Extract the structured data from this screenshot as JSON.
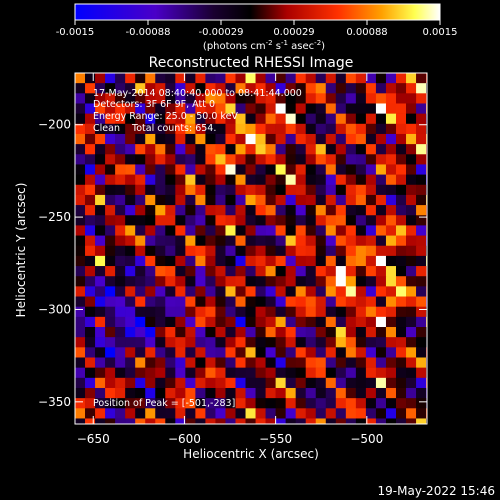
{
  "chart_data": {
    "type": "heatmap",
    "title": "Reconstructed RHESSI Image",
    "xlabel": "Heliocentric X (arcsec)",
    "ylabel": "Heliocentric Y (arcsec)",
    "xlim": [
      -660,
      -467
    ],
    "ylim": [
      -362,
      -172
    ],
    "xticks": [
      -650,
      -600,
      -550,
      -500
    ],
    "yticks": [
      -200,
      -250,
      -300,
      -350
    ],
    "colorbar": {
      "ticks": [
        "-0.0015",
        "-0.00088",
        "-0.00029",
        "0.00029",
        "0.00088",
        "0.0015"
      ],
      "units_prefix": "(photons cm",
      "units_exp1": "-2",
      "units_mid": " s",
      "units_exp2": "-1",
      "units_mid2": " asec",
      "units_exp3": "-2",
      "units_suffix": ")",
      "min": -0.0015,
      "max": 0.0015
    },
    "annotations": {
      "time_range": "17-May-2014 08:40:40.000 to 08:41:44.000",
      "detectors": "Detectors: 3F 6F 9F, Att 0",
      "energy": "Energy Range: 25.0 - 50.0 keV",
      "counts": "Clean    Total counts: 654.",
      "peak": "Position of Peak = [-501,-283]"
    },
    "peak": {
      "x": -501,
      "y": -283
    },
    "grid": false
  },
  "footer": {
    "timestamp": "19-May-2022 15:46"
  },
  "colors": {
    "background": "#000000",
    "text": "#ffffff",
    "colormap": [
      "#0000ff",
      "#5a00c8",
      "#000000",
      "#cc0000",
      "#ff7a00",
      "#ffff66",
      "#ffffff"
    ]
  }
}
